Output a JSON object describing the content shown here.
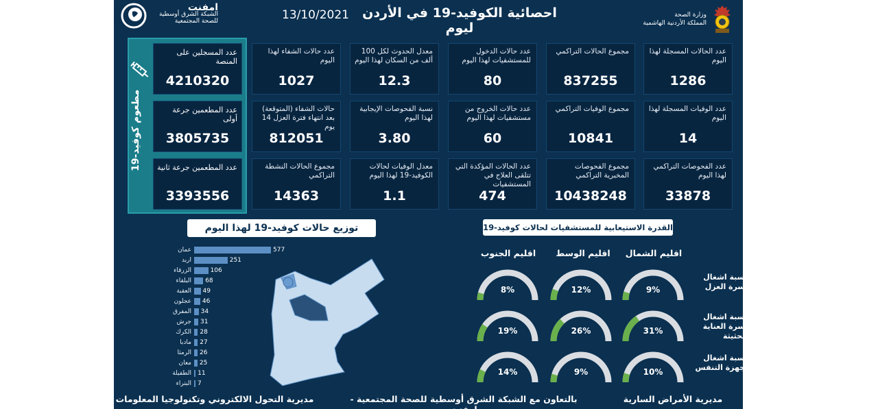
{
  "header": {
    "title": "احصائية الكوفيد-19 في الأردن ليوم",
    "date": "13/10/2021",
    "ministry_line1": "وزارة الصحة",
    "ministry_line2": "المملكة الأردنية الهاشمية",
    "emphnet_name": "امفنت",
    "emphnet_line1": "الشبكة الشرق أوسطية",
    "emphnet_line2": "للصحة المجتمعية"
  },
  "cards": {
    "r1c1": {
      "label": "عدد الحالات المسجلة لهذا اليوم",
      "value": "1286"
    },
    "r1c2": {
      "label": "مجموع الحالات التراكمي",
      "value": "837255"
    },
    "r1c3": {
      "label": "عدد حالات الدخول للمستشفيات لهذا اليوم",
      "value": "80"
    },
    "r1c4": {
      "label": "معدل الحدوث لكل 100 ألف من السكان لهذا اليوم",
      "value": "12.3"
    },
    "r1c5": {
      "label": "عدد حالات الشفاء لهذا اليوم",
      "value": "1027"
    },
    "r2c1": {
      "label": "عدد الوفيات المسجلة لهذا اليوم",
      "value": "14"
    },
    "r2c2": {
      "label": "مجموع الوفيات التراكمي",
      "value": "10841"
    },
    "r2c3": {
      "label": "عدد حالات الخروج من مستشفيات لهذا اليوم",
      "value": "60"
    },
    "r2c4": {
      "label": "نسبة الفحوصات الإيجابية لهذا اليوم",
      "value": "3.80"
    },
    "r2c5": {
      "label": "حالات الشفاء (المتوقعة) بعد انتهاء فترة العزل 14 يوم",
      "value": "812051"
    },
    "r3c1": {
      "label": "عدد الفحوصات التراكمي لهذا اليوم",
      "value": "33878"
    },
    "r3c2": {
      "label": "مجموع الفحوصات المخبرية التراكمي",
      "value": "10438248"
    },
    "r3c3": {
      "label": "عدد الحالات المؤكدة التي تتلقى العلاج في المستشفيات",
      "value": "474"
    },
    "r3c4": {
      "label": "معدل الوفيات لحالات الكوفيد-19 لهذا اليوم",
      "value": "1.1"
    },
    "r3c5": {
      "label": "مجموع الحالات النشطة التراكمي",
      "value": "14363"
    }
  },
  "vaccination": {
    "title": "مطعوم كوفيد-19",
    "registered": {
      "label": "عدد المسجلين على المنصة",
      "value": "4210320"
    },
    "first_dose": {
      "label": "عدد المطعمين جرعة أولى",
      "value": "3805735"
    },
    "second_dose": {
      "label": "عدد المطعمين جرعة ثانية",
      "value": "3393556"
    }
  },
  "distribution": {
    "title": "توزيع حالات كوفيد-19 لهذا اليوم",
    "items": [
      {
        "gov": "عمان",
        "value": 577
      },
      {
        "gov": "اربد",
        "value": 251
      },
      {
        "gov": "الزرقاء",
        "value": 106
      },
      {
        "gov": "البلقاء",
        "value": 68
      },
      {
        "gov": "العقبة",
        "value": 49
      },
      {
        "gov": "عجلون",
        "value": 46
      },
      {
        "gov": "المفرق",
        "value": 34
      },
      {
        "gov": "جرش",
        "value": 31
      },
      {
        "gov": "الكرك",
        "value": 28
      },
      {
        "gov": "مادبا",
        "value": 27
      },
      {
        "gov": "الرمثا",
        "value": 26
      },
      {
        "gov": "معان",
        "value": 25
      },
      {
        "gov": "الطفيلة",
        "value": 11
      },
      {
        "gov": "البتراء",
        "value": 7
      }
    ]
  },
  "capacity": {
    "title": "القدرة الاستيعابية للمستشفيات لحالات كوفيد-19",
    "regions": [
      "اقليم الشمال",
      "اقليم الوسط",
      "اقليم الجنوب"
    ],
    "rows": [
      {
        "label": "نسبة اشغال اسرة العزل",
        "values": [
          9,
          12,
          8
        ]
      },
      {
        "label": "نسبة اشغال اسرة العناية الحثيثة",
        "values": [
          31,
          26,
          19
        ]
      },
      {
        "label": "نسبة اشغال اجهزة التنفس",
        "values": [
          10,
          9,
          14
        ]
      }
    ],
    "gauge_track_color": "#d9dde2",
    "gauge_fill_color": "#6ab04c"
  },
  "footer": {
    "left": "مديرية التحول الالكتروني وتكنولوجيا المعلومات",
    "center": "بالتعاون مع الشبكة الشرق أوسطية للصحة المجتمعية - إمفنت",
    "right": "مديرية الأمراض السارية"
  }
}
